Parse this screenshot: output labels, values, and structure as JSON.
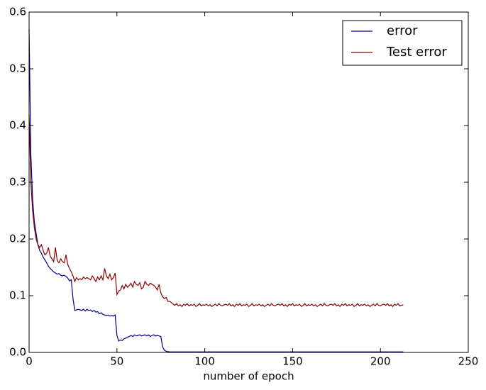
{
  "chart_data": {
    "type": "line",
    "xlabel": "number of epoch",
    "x": [
      0,
      1,
      2,
      3,
      4,
      5,
      6,
      7,
      8,
      9,
      10,
      11,
      12,
      13,
      14,
      15,
      16,
      17,
      18,
      19,
      20,
      21,
      22,
      23,
      24,
      25,
      26,
      27,
      28,
      29,
      30,
      31,
      32,
      33,
      34,
      35,
      36,
      37,
      38,
      39,
      40,
      41,
      42,
      43,
      44,
      45,
      46,
      47,
      48,
      49,
      50,
      51,
      52,
      53,
      54,
      55,
      56,
      57,
      58,
      59,
      60,
      61,
      62,
      63,
      64,
      65,
      66,
      67,
      68,
      69,
      70,
      71,
      72,
      73,
      74,
      75,
      76,
      77,
      78,
      79,
      80,
      81,
      82,
      83,
      84,
      85,
      86,
      87,
      88,
      89,
      90,
      91,
      92,
      93,
      94,
      95,
      96,
      97,
      98,
      99,
      100,
      101,
      102,
      103,
      104,
      105,
      106,
      107,
      108,
      109,
      110,
      111,
      112,
      113,
      114,
      115,
      116,
      117,
      118,
      119,
      120,
      121,
      122,
      123,
      124,
      125,
      126,
      127,
      128,
      129,
      130,
      131,
      132,
      133,
      134,
      135,
      136,
      137,
      138,
      139,
      140,
      141,
      142,
      143,
      144,
      145,
      146,
      147,
      148,
      149,
      150,
      151,
      152,
      153,
      154,
      155,
      156,
      157,
      158,
      159,
      160,
      161,
      162,
      163,
      164,
      165,
      166,
      167,
      168,
      169,
      170,
      171,
      172,
      173,
      174,
      175,
      176,
      177,
      178,
      179,
      180,
      181,
      182,
      183,
      184,
      185,
      186,
      187,
      188,
      189,
      190,
      191,
      192,
      193,
      194,
      195,
      196,
      197,
      198,
      199,
      200,
      201,
      202,
      203,
      204,
      205,
      206,
      207,
      208,
      209,
      210,
      211,
      212,
      213
    ],
    "series": [
      {
        "name": "error",
        "color": "#00008b",
        "values": [
          0.57,
          0.35,
          0.27,
          0.23,
          0.21,
          0.19,
          0.18,
          0.175,
          0.168,
          0.163,
          0.158,
          0.152,
          0.148,
          0.145,
          0.142,
          0.14,
          0.138,
          0.139,
          0.136,
          0.135,
          0.136,
          0.134,
          0.131,
          0.126,
          0.128,
          0.095,
          0.074,
          0.075,
          0.076,
          0.075,
          0.074,
          0.076,
          0.073,
          0.076,
          0.074,
          0.075,
          0.072,
          0.074,
          0.071,
          0.072,
          0.068,
          0.07,
          0.067,
          0.066,
          0.065,
          0.066,
          0.064,
          0.065,
          0.064,
          0.066,
          0.03,
          0.02,
          0.022,
          0.021,
          0.024,
          0.025,
          0.027,
          0.028,
          0.03,
          0.028,
          0.031,
          0.029,
          0.03,
          0.031,
          0.029,
          0.03,
          0.031,
          0.029,
          0.031,
          0.028,
          0.03,
          0.031,
          0.029,
          0.03,
          0.029,
          0.028,
          0.01,
          0.004,
          0.002,
          0.0015,
          0.001,
          0.001,
          0.001,
          0.001,
          0.001,
          0.001,
          0.001,
          0.001,
          0.001,
          0.001,
          0.001,
          0.001,
          0.001,
          0.001,
          0.001,
          0.001,
          0.001,
          0.001,
          0.001,
          0.001,
          0.001,
          0.001,
          0.001,
          0.001,
          0.001,
          0.001,
          0.001,
          0.001,
          0.001,
          0.001,
          0.001,
          0.001,
          0.001,
          0.001,
          0.001,
          0.001,
          0.001,
          0.001,
          0.001,
          0.001,
          0.001,
          0.001,
          0.001,
          0.001,
          0.001,
          0.001,
          0.001,
          0.001,
          0.001,
          0.001,
          0.001,
          0.001,
          0.001,
          0.001,
          0.001,
          0.001,
          0.001,
          0.001,
          0.001,
          0.001,
          0.001,
          0.001,
          0.001,
          0.001,
          0.001,
          0.001,
          0.001,
          0.001,
          0.001,
          0.001,
          0.001,
          0.001,
          0.001,
          0.001,
          0.001,
          0.001,
          0.001,
          0.001,
          0.001,
          0.001,
          0.001,
          0.001,
          0.001,
          0.001,
          0.001,
          0.001,
          0.001,
          0.001,
          0.001,
          0.001,
          0.001,
          0.001,
          0.001,
          0.001,
          0.001,
          0.001,
          0.001,
          0.001,
          0.001,
          0.001,
          0.001,
          0.001,
          0.001,
          0.001,
          0.001,
          0.001,
          0.001,
          0.001,
          0.001,
          0.001,
          0.001,
          0.001,
          0.001,
          0.001,
          0.001,
          0.001,
          0.001,
          0.001,
          0.001,
          0.001,
          0.001,
          0.001,
          0.001,
          0.001,
          0.001,
          0.001,
          0.001,
          0.001,
          0.001,
          0.001,
          0.001,
          0.001,
          0.001,
          0.001
        ]
      },
      {
        "name": "Test error",
        "color": "#8b0000",
        "values": [
          0.42,
          0.3,
          0.25,
          0.22,
          0.2,
          0.19,
          0.185,
          0.19,
          0.18,
          0.172,
          0.175,
          0.185,
          0.17,
          0.165,
          0.16,
          0.185,
          0.162,
          0.158,
          0.165,
          0.16,
          0.158,
          0.172,
          0.155,
          0.148,
          0.142,
          0.135,
          0.125,
          0.132,
          0.128,
          0.13,
          0.128,
          0.133,
          0.13,
          0.132,
          0.13,
          0.128,
          0.135,
          0.13,
          0.125,
          0.133,
          0.128,
          0.135,
          0.128,
          0.148,
          0.135,
          0.13,
          0.138,
          0.128,
          0.132,
          0.14,
          0.102,
          0.108,
          0.11,
          0.118,
          0.112,
          0.12,
          0.115,
          0.118,
          0.122,
          0.115,
          0.125,
          0.12,
          0.118,
          0.123,
          0.112,
          0.115,
          0.125,
          0.12,
          0.118,
          0.122,
          0.12,
          0.118,
          0.115,
          0.11,
          0.12,
          0.105,
          0.098,
          0.095,
          0.097,
          0.09,
          0.09,
          0.088,
          0.085,
          0.083,
          0.086,
          0.082,
          0.084,
          0.081,
          0.085,
          0.083,
          0.086,
          0.082,
          0.084,
          0.083,
          0.085,
          0.081,
          0.083,
          0.086,
          0.082,
          0.084,
          0.083,
          0.085,
          0.082,
          0.084,
          0.081,
          0.083,
          0.085,
          0.082,
          0.086,
          0.083,
          0.082,
          0.084,
          0.085,
          0.083,
          0.086,
          0.082,
          0.084,
          0.081,
          0.085,
          0.083,
          0.086,
          0.082,
          0.084,
          0.083,
          0.085,
          0.081,
          0.083,
          0.086,
          0.082,
          0.084,
          0.083,
          0.085,
          0.082,
          0.084,
          0.081,
          0.083,
          0.085,
          0.082,
          0.086,
          0.083,
          0.082,
          0.084,
          0.085,
          0.083,
          0.086,
          0.082,
          0.084,
          0.081,
          0.085,
          0.083,
          0.086,
          0.082,
          0.084,
          0.083,
          0.085,
          0.081,
          0.083,
          0.086,
          0.082,
          0.084,
          0.083,
          0.085,
          0.082,
          0.084,
          0.081,
          0.083,
          0.085,
          0.082,
          0.086,
          0.083,
          0.082,
          0.084,
          0.085,
          0.083,
          0.086,
          0.082,
          0.084,
          0.081,
          0.085,
          0.083,
          0.086,
          0.082,
          0.084,
          0.083,
          0.085,
          0.081,
          0.083,
          0.086,
          0.082,
          0.084,
          0.083,
          0.085,
          0.082,
          0.084,
          0.081,
          0.083,
          0.085,
          0.082,
          0.086,
          0.083,
          0.082,
          0.084,
          0.085,
          0.083,
          0.086,
          0.082,
          0.084,
          0.081,
          0.085,
          0.083,
          0.086,
          0.082,
          0.083,
          0.084
        ]
      }
    ],
    "xlim": [
      0,
      250
    ],
    "xticks": [
      0,
      50,
      100,
      150,
      200,
      250
    ],
    "ylim": [
      0,
      0.6
    ],
    "yticks": [
      {
        "value": 0,
        "label": "0.0"
      },
      0.1,
      0.2,
      0.3,
      0.4,
      0.5,
      0.6
    ],
    "legend": "upper right"
  }
}
